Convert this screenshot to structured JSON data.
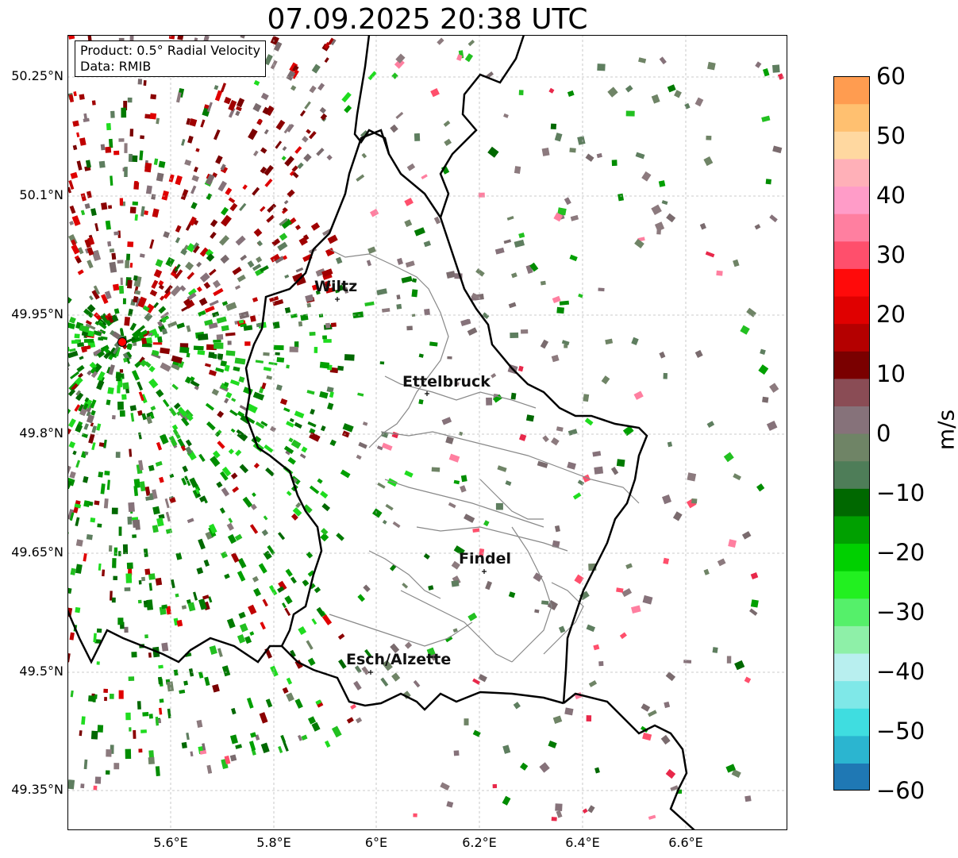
{
  "title": "07.09.2025 20:38 UTC",
  "info": {
    "product": "Product: 0.5° Radial Velocity",
    "data": "Data: RMIB"
  },
  "axes": {
    "lat_ticks": [
      "50.25°N",
      "50.1°N",
      "49.95°N",
      "49.8°N",
      "49.65°N",
      "49.5°N",
      "49.35°N"
    ],
    "lon_ticks": [
      "5.6°E",
      "5.8°E",
      "6°E",
      "6.2°E",
      "6.4°E",
      "6.6°E"
    ],
    "grid": true
  },
  "cities": [
    {
      "name": "Wiltz"
    },
    {
      "name": "Ettelbruck"
    },
    {
      "name": "Findel"
    },
    {
      "name": "Esch/Alzette"
    }
  ],
  "colorbar": {
    "label": "m/s",
    "ticks": [
      "60",
      "50",
      "40",
      "30",
      "20",
      "10",
      "0",
      "−10",
      "−20",
      "−30",
      "−40",
      "−50",
      "−60"
    ],
    "colors": [
      "#1f78b4",
      "#2bb5d0",
      "#3fdde0",
      "#7fe8e8",
      "#b8efef",
      "#8ef0a8",
      "#55f06a",
      "#22f020",
      "#00d000",
      "#00a000",
      "#006800",
      "#4e7d58",
      "#6f8466",
      "#86727a",
      "#8a4c55",
      "#7a0000",
      "#b40000",
      "#e00000",
      "#ff0a0a",
      "#ff4f6c",
      "#ff7fa0",
      "#ff9cc8",
      "#ffb0b8",
      "#ffd8a0",
      "#ffc070",
      "#ff9c50"
    ]
  },
  "legend": {
    "radar_site": "radar-site-marker"
  }
}
